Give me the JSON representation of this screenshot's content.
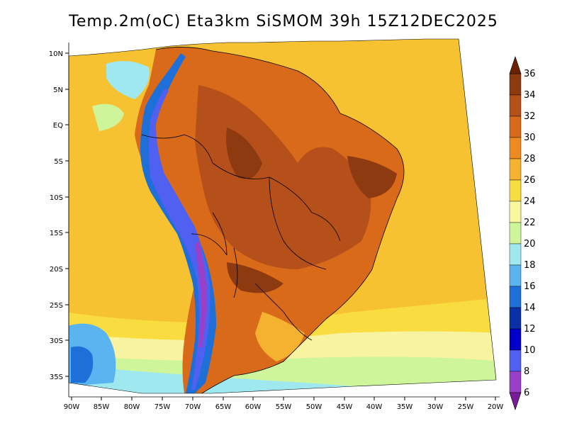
{
  "title": "Temp.2m(oC) Eta3km SiSMOM 39h 15Z12DEC2025",
  "map": {
    "variable": "2 m air temperature",
    "units": "oC",
    "region": "South America",
    "lat_labels": [
      "10N",
      "5N",
      "EQ",
      "5S",
      "10S",
      "15S",
      "20S",
      "25S",
      "30S",
      "35S"
    ],
    "lon_labels": [
      "90W",
      "85W",
      "80W",
      "75W",
      "70W",
      "65W",
      "60W",
      "55W",
      "50W",
      "45W",
      "40W",
      "35W",
      "30W",
      "25W",
      "20W"
    ]
  },
  "colorbar": {
    "labels": [
      "36",
      "34",
      "32",
      "30",
      "28",
      "26",
      "24",
      "22",
      "20",
      "18",
      "16",
      "14",
      "12",
      "10",
      "8",
      "6"
    ],
    "colors": [
      "#6b2200",
      "#8e3a10",
      "#b5501a",
      "#d86a1a",
      "#ee8a22",
      "#f5b230",
      "#f8dc40",
      "#f8f8a0",
      "#cff59a",
      "#a0e8f0",
      "#5ab4f0",
      "#1e70d8",
      "#0a30a8",
      "#0000c8",
      "#5060f0",
      "#9a40c8",
      "#781c98"
    ]
  }
}
